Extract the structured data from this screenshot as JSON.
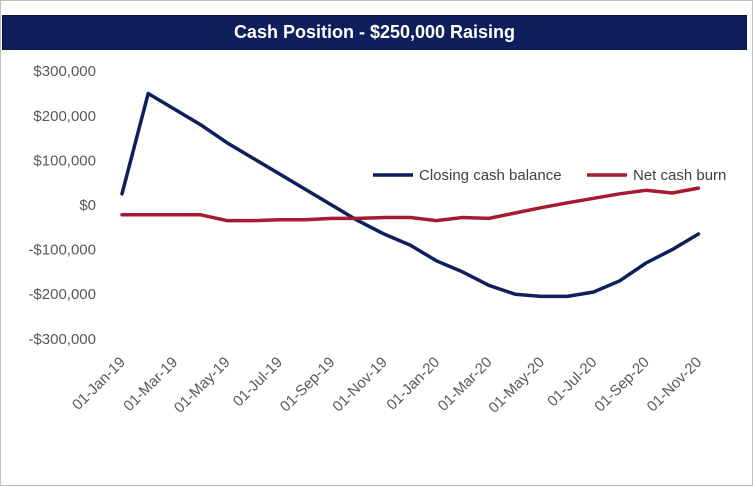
{
  "chart_data": {
    "type": "line",
    "title": "Cash Position - $250,000 Raising",
    "xlabel": "",
    "ylabel": "",
    "ylim": [
      -300000,
      300000
    ],
    "y_ticks": [
      300000,
      200000,
      100000,
      0,
      -100000,
      -200000,
      -300000
    ],
    "y_tick_labels": [
      "$300,000",
      "$200,000",
      "$100,000",
      "$0",
      "-$100,000",
      "-$200,000",
      "-$300,000"
    ],
    "x_tick_labels": [
      "01-Jan-19",
      "01-Mar-19",
      "01-May-19",
      "01-Jul-19",
      "01-Sep-19",
      "01-Nov-19",
      "01-Jan-20",
      "01-Mar-20",
      "01-May-20",
      "01-Jul-20",
      "01-Sep-20",
      "01-Nov-20"
    ],
    "x": [
      "01-Jan-19",
      "01-Feb-19",
      "01-Mar-19",
      "01-Apr-19",
      "01-May-19",
      "01-Jun-19",
      "01-Jul-19",
      "01-Aug-19",
      "01-Sep-19",
      "01-Oct-19",
      "01-Nov-19",
      "01-Dec-19",
      "01-Jan-20",
      "01-Feb-20",
      "01-Mar-20",
      "01-Apr-20",
      "01-May-20",
      "01-Jun-20",
      "01-Jul-20",
      "01-Aug-20",
      "01-Sep-20",
      "01-Oct-20",
      "01-Nov-20",
      "01-Dec-20"
    ],
    "series": [
      {
        "name": "Closing cash balance",
        "color": "#0e1f5b",
        "values": [
          25000,
          250000,
          215000,
          180000,
          140000,
          105000,
          70000,
          35000,
          0,
          -35000,
          -65000,
          -90000,
          -125000,
          -150000,
          -180000,
          -200000,
          -205000,
          -205000,
          -195000,
          -170000,
          -130000,
          -100000,
          -65000,
          null
        ]
      },
      {
        "name": "Net cash burn",
        "color": "#a51c30",
        "values": [
          -22000,
          -22000,
          -22000,
          -22000,
          -35000,
          -35000,
          -33000,
          -33000,
          -30000,
          -30000,
          -28000,
          -28000,
          -35000,
          -28000,
          -30000,
          -18000,
          -6000,
          5000,
          15000,
          25000,
          33000,
          27000,
          38000,
          null
        ]
      }
    ],
    "legend_position": "right",
    "grid": false
  }
}
